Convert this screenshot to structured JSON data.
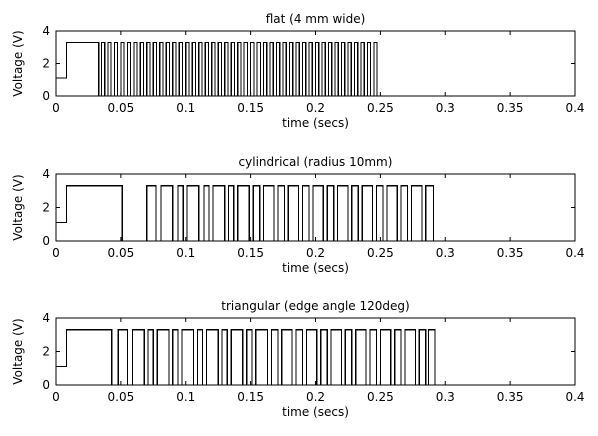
{
  "chart_data": [
    {
      "type": "line",
      "title": "flat (4 mm wide)",
      "xlabel": "time (secs)",
      "ylabel": "Voltage (V)",
      "xlim": [
        0,
        0.4
      ],
      "ylim": [
        0,
        4
      ],
      "xticks": [
        "0",
        "0.05",
        "0.1",
        "0.15",
        "0.2",
        "0.25",
        "0.3",
        "0.35",
        "0.4"
      ],
      "yticks": [
        "0",
        "2",
        "4"
      ],
      "grid": false,
      "series": [
        {
          "start_level": 1.1,
          "initial_high": [
            0.008,
            0.033
          ],
          "pulses": [
            [
              0.035,
              0.0375
            ],
            [
              0.04,
              0.0425
            ],
            [
              0.045,
              0.0475
            ],
            [
              0.05,
              0.0525
            ],
            [
              0.055,
              0.0575
            ],
            [
              0.06,
              0.0625
            ],
            [
              0.065,
              0.0675
            ],
            [
              0.07,
              0.0725
            ],
            [
              0.075,
              0.0775
            ],
            [
              0.08,
              0.0825
            ],
            [
              0.085,
              0.0875
            ],
            [
              0.09,
              0.0925
            ],
            [
              0.095,
              0.0975
            ],
            [
              0.1,
              0.1025
            ],
            [
              0.105,
              0.1075
            ],
            [
              0.11,
              0.1125
            ],
            [
              0.115,
              0.1175
            ],
            [
              0.12,
              0.1225
            ],
            [
              0.125,
              0.1275
            ],
            [
              0.13,
              0.1325
            ],
            [
              0.135,
              0.1375
            ],
            [
              0.14,
              0.1425
            ],
            [
              0.145,
              0.1475
            ],
            [
              0.15,
              0.1525
            ],
            [
              0.155,
              0.1575
            ],
            [
              0.16,
              0.1625
            ],
            [
              0.165,
              0.1675
            ],
            [
              0.17,
              0.1725
            ],
            [
              0.175,
              0.1775
            ],
            [
              0.18,
              0.1825
            ],
            [
              0.185,
              0.1875
            ],
            [
              0.19,
              0.1925
            ],
            [
              0.195,
              0.1975
            ],
            [
              0.2,
              0.2025
            ],
            [
              0.205,
              0.2075
            ],
            [
              0.21,
              0.2125
            ],
            [
              0.215,
              0.2175
            ],
            [
              0.22,
              0.2225
            ],
            [
              0.225,
              0.2275
            ],
            [
              0.23,
              0.2325
            ],
            [
              0.235,
              0.2375
            ],
            [
              0.24,
              0.2425
            ],
            [
              0.245,
              0.2475
            ]
          ],
          "high": 3.3,
          "low": 0
        }
      ]
    },
    {
      "type": "line",
      "title": "cylindrical (radius 10mm)",
      "xlabel": "time (secs)",
      "ylabel": "Voltage (V)",
      "xlim": [
        0,
        0.4
      ],
      "ylim": [
        0,
        4
      ],
      "xticks": [
        "0",
        "0.05",
        "0.1",
        "0.15",
        "0.2",
        "0.25",
        "0.3",
        "0.35",
        "0.4"
      ],
      "yticks": [
        "0",
        "2",
        "4"
      ],
      "grid": false,
      "series": [
        {
          "start_level": 1.1,
          "initial_high": [
            0.008,
            0.051
          ],
          "pulses": [
            [
              0.07,
              0.077
            ],
            [
              0.081,
              0.09
            ],
            [
              0.094,
              0.098
            ],
            [
              0.101,
              0.11
            ],
            [
              0.114,
              0.118
            ],
            [
              0.121,
              0.13
            ],
            [
              0.133,
              0.137
            ],
            [
              0.14,
              0.149
            ],
            [
              0.152,
              0.157
            ],
            [
              0.16,
              0.168
            ],
            [
              0.171,
              0.176
            ],
            [
              0.179,
              0.187
            ],
            [
              0.19,
              0.195
            ],
            [
              0.198,
              0.206
            ],
            [
              0.209,
              0.214
            ],
            [
              0.217,
              0.225
            ],
            [
              0.228,
              0.233
            ],
            [
              0.236,
              0.244
            ],
            [
              0.247,
              0.252
            ],
            [
              0.255,
              0.263
            ],
            [
              0.266,
              0.271
            ],
            [
              0.274,
              0.282
            ],
            [
              0.285,
              0.291
            ]
          ],
          "high": 3.3,
          "low": 0
        }
      ]
    },
    {
      "type": "line",
      "title": "triangular (edge angle 120deg)",
      "xlabel": "time (secs)",
      "ylabel": "Voltage (V)",
      "xlim": [
        0,
        0.4
      ],
      "ylim": [
        0,
        4
      ],
      "xticks": [
        "0",
        "0.05",
        "0.1",
        "0.15",
        "0.2",
        "0.25",
        "0.3",
        "0.35",
        "0.4"
      ],
      "yticks": [
        "0",
        "2",
        "4"
      ],
      "grid": false,
      "series": [
        {
          "start_level": 1.1,
          "initial_high": [
            0.008,
            0.043
          ],
          "pulses": [
            [
              0.048,
              0.055
            ],
            [
              0.059,
              0.068
            ],
            [
              0.071,
              0.075
            ],
            [
              0.078,
              0.087
            ],
            [
              0.09,
              0.094
            ],
            [
              0.097,
              0.106
            ],
            [
              0.109,
              0.113
            ],
            [
              0.116,
              0.125
            ],
            [
              0.128,
              0.132
            ],
            [
              0.135,
              0.144
            ],
            [
              0.147,
              0.151
            ],
            [
              0.154,
              0.163
            ],
            [
              0.166,
              0.171
            ],
            [
              0.174,
              0.182
            ],
            [
              0.185,
              0.19
            ],
            [
              0.193,
              0.201
            ],
            [
              0.204,
              0.209
            ],
            [
              0.212,
              0.22
            ],
            [
              0.223,
              0.228
            ],
            [
              0.231,
              0.239
            ],
            [
              0.242,
              0.247
            ],
            [
              0.25,
              0.258
            ],
            [
              0.261,
              0.266
            ],
            [
              0.269,
              0.277
            ],
            [
              0.28,
              0.285
            ],
            [
              0.287,
              0.292
            ]
          ],
          "high": 3.3,
          "low": 0
        }
      ]
    }
  ]
}
